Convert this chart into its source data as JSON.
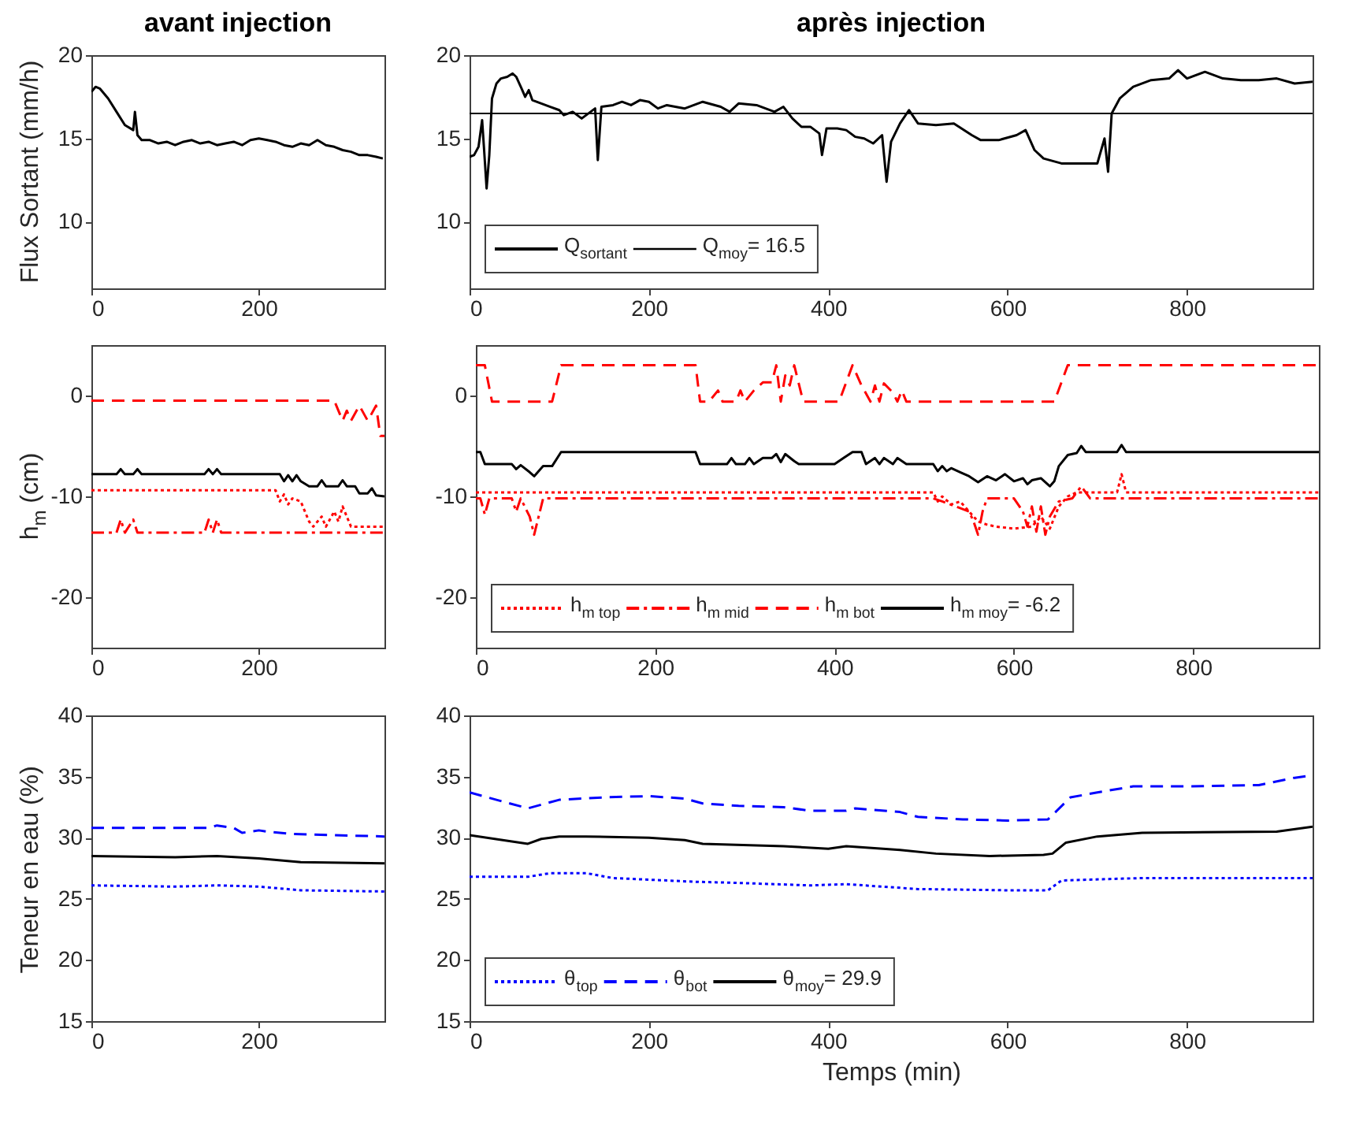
{
  "chart_data": [
    {
      "type": "line",
      "title": "avant injection",
      "ylabel": "Flux Sortant (mm/h)",
      "xlim": [
        0,
        350
      ],
      "ylim": [
        6,
        20
      ],
      "xticks": [
        0,
        200
      ],
      "yticks": [
        10,
        15,
        20
      ],
      "series": [
        {
          "color": "#000000",
          "line_style": "solid",
          "x": [
            0,
            5,
            10,
            20,
            30,
            40,
            50,
            52,
            55,
            60,
            70,
            80,
            90,
            100,
            110,
            120,
            130,
            140,
            150,
            160,
            170,
            180,
            190,
            200,
            210,
            220,
            230,
            240,
            250,
            260,
            270,
            280,
            290,
            300,
            310,
            320,
            330,
            340,
            348
          ],
          "values": [
            17.8,
            18.1,
            18.0,
            17.4,
            16.6,
            15.8,
            15.5,
            16.6,
            15.2,
            14.9,
            14.9,
            14.7,
            14.8,
            14.6,
            14.8,
            14.9,
            14.7,
            14.8,
            14.6,
            14.7,
            14.8,
            14.6,
            14.9,
            15.0,
            14.9,
            14.8,
            14.6,
            14.5,
            14.7,
            14.6,
            14.9,
            14.6,
            14.5,
            14.3,
            14.2,
            14.0,
            14.0,
            13.9,
            13.8
          ]
        }
      ]
    },
    {
      "type": "line",
      "title": "après injection",
      "xlim": [
        0,
        940
      ],
      "ylim": [
        6,
        20
      ],
      "xticks": [
        0,
        200,
        400,
        600,
        800
      ],
      "yticks": [
        10,
        15,
        20
      ],
      "legend": "bottom left",
      "ref_lines": [
        {
          "axis": "y",
          "value": 16.5,
          "label": "Q$_{moy}$= 16.5",
          "color": "#000000",
          "line_style": "solid"
        }
      ],
      "series": [
        {
          "name": "Q$_{sortant}$",
          "color": "#000000",
          "line_style": "solid",
          "x": [
            0,
            5,
            10,
            14,
            16,
            19,
            22,
            25,
            30,
            35,
            42,
            48,
            52,
            58,
            62,
            66,
            70,
            80,
            90,
            100,
            105,
            115,
            125,
            135,
            140,
            143,
            147,
            160,
            170,
            180,
            190,
            200,
            210,
            220,
            240,
            260,
            280,
            290,
            300,
            320,
            340,
            350,
            360,
            370,
            380,
            390,
            393,
            398,
            410,
            420,
            430,
            440,
            450,
            460,
            465,
            470,
            480,
            490,
            500,
            520,
            540,
            560,
            570,
            590,
            610,
            620,
            630,
            640,
            660,
            680,
            700,
            708,
            712,
            716,
            725,
            740,
            760,
            780,
            790,
            800,
            820,
            840,
            860,
            880,
            900,
            920,
            940
          ],
          "values": [
            13.9,
            14.0,
            14.5,
            16.1,
            14.5,
            12.0,
            14.0,
            17.4,
            18.3,
            18.6,
            18.7,
            18.9,
            18.7,
            18.0,
            17.5,
            17.9,
            17.3,
            17.1,
            16.9,
            16.7,
            16.4,
            16.6,
            16.2,
            16.6,
            16.8,
            13.7,
            16.9,
            17.0,
            17.2,
            17.0,
            17.3,
            17.2,
            16.8,
            17.0,
            16.8,
            17.2,
            16.9,
            16.6,
            17.1,
            17.0,
            16.6,
            16.9,
            16.2,
            15.7,
            15.7,
            15.3,
            14.0,
            15.6,
            15.6,
            15.5,
            15.1,
            15.0,
            14.7,
            15.2,
            12.4,
            14.8,
            15.9,
            16.7,
            15.9,
            15.8,
            15.9,
            15.2,
            14.9,
            14.9,
            15.2,
            15.5,
            14.3,
            13.8,
            13.5,
            13.5,
            13.5,
            15.0,
            13.0,
            16.5,
            17.4,
            18.1,
            18.5,
            18.6,
            19.1,
            18.6,
            19.0,
            18.6,
            18.5,
            18.5,
            18.6,
            18.3,
            18.4
          ]
        }
      ]
    },
    {
      "type": "line",
      "ylabel": "h$_{m}$ (cm)",
      "xlim": [
        0,
        350
      ],
      "ylim": [
        -25,
        5
      ],
      "xticks": [
        0,
        200
      ],
      "yticks": [
        -20,
        -10,
        0
      ],
      "series": [
        {
          "color": "#ff0000",
          "line_style": "dotted",
          "x": [
            0,
            220,
            225,
            230,
            235,
            240,
            250,
            255,
            260,
            265,
            275,
            280,
            290,
            295,
            300,
            310,
            350
          ],
          "values": [
            -9.4,
            -9.4,
            -10.5,
            -9.8,
            -10.8,
            -10.2,
            -10.5,
            -11.5,
            -12.5,
            -13.0,
            -12.0,
            -13.0,
            -11.5,
            -12.5,
            -11.0,
            -13.0,
            -13.0
          ]
        },
        {
          "color": "#ff0000",
          "line_style": "dashdot",
          "x": [
            0,
            30,
            35,
            40,
            50,
            55,
            135,
            140,
            145,
            150,
            155,
            350
          ],
          "values": [
            -13.6,
            -13.6,
            -12.3,
            -13.6,
            -12.3,
            -13.6,
            -13.6,
            -12.3,
            -13.6,
            -12.3,
            -13.6,
            -13.6
          ]
        },
        {
          "color": "#ff0000",
          "line_style": "dashed",
          "x": [
            0,
            290,
            300,
            305,
            310,
            320,
            330,
            340,
            345,
            350
          ],
          "values": [
            -0.5,
            -0.5,
            -2.5,
            -1.5,
            -2.5,
            -1.0,
            -2.5,
            -1.0,
            -4.0,
            -4.0
          ]
        },
        {
          "color": "#000000",
          "line_style": "solid",
          "x": [
            0,
            30,
            35,
            40,
            50,
            55,
            60,
            135,
            140,
            145,
            150,
            155,
            225,
            230,
            235,
            240,
            245,
            250,
            260,
            270,
            275,
            280,
            295,
            300,
            305,
            315,
            320,
            330,
            335,
            340,
            350
          ],
          "values": [
            -7.8,
            -7.8,
            -7.3,
            -7.8,
            -7.8,
            -7.3,
            -7.8,
            -7.8,
            -7.3,
            -7.8,
            -7.3,
            -7.8,
            -7.8,
            -8.5,
            -7.9,
            -8.5,
            -7.9,
            -8.5,
            -9.0,
            -9.0,
            -8.4,
            -9.0,
            -9.0,
            -8.4,
            -9.0,
            -9.0,
            -9.7,
            -9.7,
            -9.2,
            -9.9,
            -10.0
          ]
        }
      ]
    },
    {
      "type": "line",
      "xlim": [
        0,
        940
      ],
      "ylim": [
        -25,
        5
      ],
      "xticks": [
        0,
        200,
        400,
        600,
        800
      ],
      "yticks": [
        -20,
        -10,
        0
      ],
      "legend": "bottom left",
      "series": [
        {
          "name": "h$_{m top}$",
          "color": "#ff0000",
          "line_style": "dotted",
          "x": [
            0,
            510,
            515,
            520,
            530,
            540,
            550,
            560,
            570,
            580,
            600,
            620,
            630,
            640,
            650,
            660,
            670,
            715,
            720,
            725,
            940
          ],
          "values": [
            -9.6,
            -9.6,
            -10.5,
            -10.0,
            -10.8,
            -10.5,
            -11.5,
            -12.5,
            -12.8,
            -13.0,
            -13.2,
            -13.0,
            -12.0,
            -13.2,
            -11.0,
            -10.0,
            -9.6,
            -9.6,
            -7.8,
            -9.6,
            -9.6
          ]
        },
        {
          "name": "h$_{m mid}$",
          "color": "#ff0000",
          "line_style": "dashdot",
          "x": [
            0,
            5,
            10,
            15,
            40,
            45,
            50,
            60,
            65,
            75,
            510,
            520,
            535,
            550,
            555,
            560,
            565,
            570,
            600,
            610,
            615,
            620,
            625,
            630,
            635,
            640,
            650,
            665,
            675,
            685,
            940
          ],
          "values": [
            -10.2,
            -10.2,
            -11.8,
            -10.2,
            -10.2,
            -11.5,
            -10.2,
            -12.0,
            -13.8,
            -10.2,
            -10.2,
            -10.5,
            -11.0,
            -11.5,
            -12.5,
            -13.8,
            -11.5,
            -10.2,
            -10.2,
            -11.5,
            -13.0,
            -11.0,
            -13.5,
            -11.0,
            -13.8,
            -12.0,
            -10.5,
            -10.2,
            -9.0,
            -10.2,
            -10.2
          ]
        },
        {
          "name": "h$_{m bot}$",
          "color": "#ff0000",
          "line_style": "dashed",
          "x": [
            0,
            10,
            18,
            85,
            95,
            245,
            250,
            260,
            270,
            275,
            290,
            295,
            300,
            310,
            320,
            330,
            335,
            340,
            345,
            350,
            355,
            365,
            405,
            420,
            430,
            440,
            445,
            450,
            455,
            465,
            470,
            475,
            480,
            645,
            660,
            940
          ],
          "values": [
            3.0,
            3.0,
            -0.6,
            -0.6,
            3.0,
            3.0,
            -0.6,
            -0.6,
            0.5,
            -0.6,
            -0.6,
            0.5,
            -0.6,
            0.5,
            1.3,
            1.3,
            3.0,
            -0.6,
            2.0,
            1.0,
            3.0,
            -0.6,
            -0.6,
            3.0,
            1.0,
            -0.6,
            1.0,
            -0.6,
            1.2,
            0.3,
            -0.6,
            0.5,
            -0.6,
            -0.6,
            3.0,
            3.0
          ]
        },
        {
          "name": "h$_{m moy}$= -6.2",
          "color": "#000000",
          "line_style": "solid",
          "x": [
            0,
            5,
            10,
            40,
            45,
            50,
            60,
            65,
            75,
            85,
            95,
            245,
            250,
            280,
            285,
            290,
            300,
            305,
            310,
            320,
            330,
            335,
            340,
            345,
            355,
            360,
            400,
            410,
            420,
            430,
            435,
            445,
            450,
            455,
            465,
            470,
            480,
            510,
            515,
            520,
            525,
            530,
            540,
            550,
            560,
            570,
            580,
            590,
            600,
            610,
            615,
            620,
            630,
            640,
            645,
            650,
            660,
            670,
            675,
            680,
            715,
            720,
            725,
            940
          ],
          "values": [
            -5.6,
            -5.6,
            -6.8,
            -6.8,
            -7.3,
            -6.9,
            -7.6,
            -8.0,
            -7.0,
            -7.0,
            -5.6,
            -5.6,
            -6.8,
            -6.8,
            -6.2,
            -6.8,
            -6.8,
            -6.2,
            -6.8,
            -6.2,
            -6.2,
            -5.8,
            -6.6,
            -5.8,
            -6.5,
            -6.8,
            -6.8,
            -6.2,
            -5.6,
            -5.6,
            -6.8,
            -6.2,
            -6.8,
            -6.2,
            -6.8,
            -6.2,
            -6.8,
            -6.8,
            -7.5,
            -7.0,
            -7.5,
            -7.2,
            -7.6,
            -8.0,
            -8.6,
            -8.0,
            -8.4,
            -7.8,
            -8.5,
            -8.2,
            -8.8,
            -8.4,
            -8.2,
            -9.0,
            -8.5,
            -7.0,
            -5.9,
            -5.7,
            -5.0,
            -5.6,
            -5.6,
            -4.9,
            -5.6,
            -5.6
          ]
        }
      ]
    },
    {
      "type": "line",
      "ylabel": "Teneur en eau (%)",
      "xlim": [
        0,
        350
      ],
      "ylim": [
        15,
        40
      ],
      "xticks": [
        0,
        200
      ],
      "yticks": [
        15,
        20,
        25,
        30,
        35,
        40
      ],
      "series": [
        {
          "color": "#0000ff",
          "line_style": "dotted",
          "x": [
            0,
            100,
            150,
            200,
            250,
            350
          ],
          "values": [
            26.1,
            26.0,
            26.1,
            26.0,
            25.7,
            25.6
          ]
        },
        {
          "color": "#0000ff",
          "line_style": "dashed",
          "x": [
            0,
            140,
            150,
            170,
            180,
            200,
            210,
            240,
            350
          ],
          "values": [
            30.8,
            30.8,
            31.0,
            30.8,
            30.4,
            30.6,
            30.5,
            30.3,
            30.1
          ]
        },
        {
          "color": "#000000",
          "line_style": "solid",
          "x": [
            0,
            100,
            150,
            200,
            250,
            350
          ],
          "values": [
            28.5,
            28.4,
            28.5,
            28.3,
            28.0,
            27.9
          ]
        }
      ]
    },
    {
      "type": "line",
      "xlabel": "Temps (min)",
      "xlim": [
        0,
        940
      ],
      "ylim": [
        15,
        40
      ],
      "xticks": [
        0,
        200,
        400,
        600,
        800
      ],
      "yticks": [
        15,
        20,
        25,
        30,
        35,
        40
      ],
      "legend": "bottom left",
      "series": [
        {
          "name": "θ$_{top}$",
          "color": "#0000ff",
          "line_style": "dotted",
          "x": [
            0,
            65,
            90,
            130,
            160,
            250,
            300,
            380,
            420,
            500,
            600,
            645,
            660,
            750,
            940
          ],
          "values": [
            26.8,
            26.8,
            27.1,
            27.1,
            26.7,
            26.4,
            26.3,
            26.1,
            26.2,
            25.8,
            25.7,
            25.7,
            26.5,
            26.7,
            26.7
          ]
        },
        {
          "name": "θ$_{bot}$",
          "color": "#0000ff",
          "line_style": "dashed",
          "x": [
            0,
            65,
            100,
            150,
            200,
            240,
            260,
            300,
            350,
            380,
            420,
            430,
            480,
            500,
            550,
            600,
            645,
            670,
            700,
            740,
            800,
            880,
            920,
            940
          ],
          "values": [
            33.7,
            32.4,
            33.1,
            33.3,
            33.4,
            33.2,
            32.8,
            32.6,
            32.5,
            32.2,
            32.2,
            32.4,
            32.1,
            31.7,
            31.5,
            31.4,
            31.5,
            33.3,
            33.7,
            34.2,
            34.2,
            34.3,
            34.9,
            35.1
          ]
        },
        {
          "name": "θ$_{moy}$= 29.9",
          "color": "#000000",
          "line_style": "solid",
          "x": [
            0,
            65,
            80,
            100,
            130,
            200,
            240,
            260,
            350,
            400,
            420,
            480,
            520,
            580,
            640,
            650,
            665,
            700,
            750,
            900,
            940
          ],
          "values": [
            30.2,
            29.5,
            29.9,
            30.1,
            30.1,
            30.0,
            29.8,
            29.5,
            29.3,
            29.1,
            29.3,
            29.0,
            28.7,
            28.5,
            28.6,
            28.7,
            29.6,
            30.1,
            30.4,
            30.5,
            30.9
          ]
        }
      ]
    }
  ]
}
